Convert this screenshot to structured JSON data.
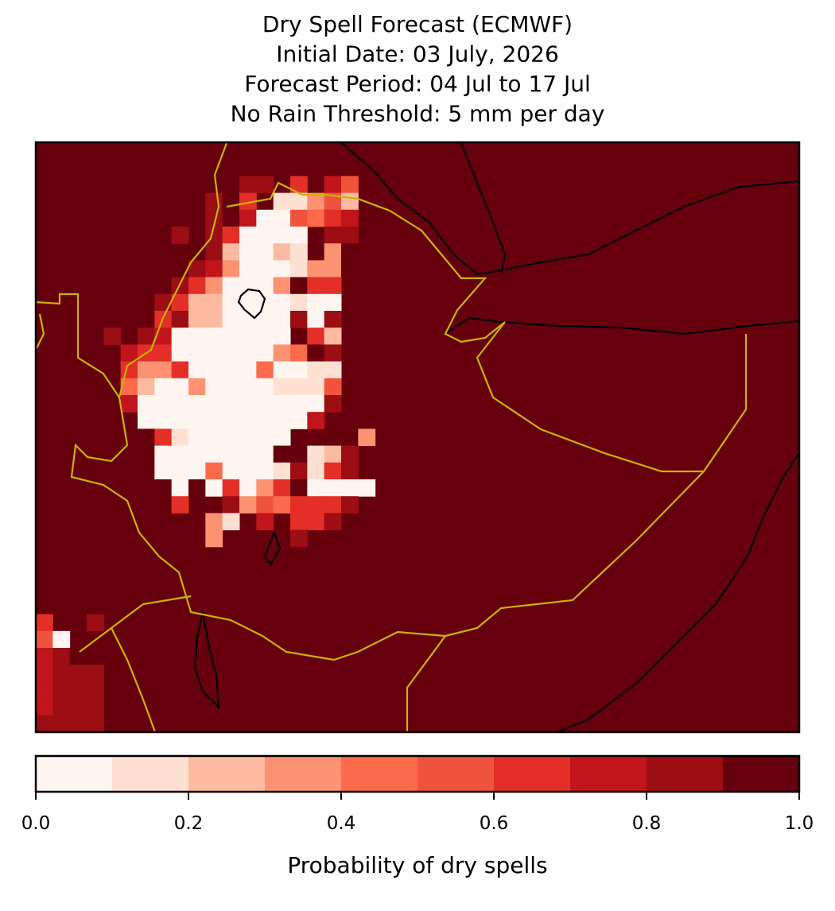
{
  "chart_data": {
    "type": "heatmap",
    "title": [
      "Dry Spell Forecast (ECMWF)",
      "Initial Date: 03 July, 2026",
      "Forecast Period: 04 Jul to 17 Jul",
      "No Rain Threshold: 5 mm per day"
    ],
    "grid_rows": 35,
    "grid_cols": 45,
    "fill_value": 1,
    "cells": [
      [
        1,
        16,
        0.9
      ],
      [
        2,
        12,
        0.8
      ],
      [
        2,
        13,
        0.8
      ],
      [
        2,
        15,
        0.6
      ],
      [
        2,
        17,
        0.7
      ],
      [
        2,
        18,
        0.5
      ],
      [
        3,
        10,
        0.8
      ],
      [
        3,
        11,
        0.9
      ],
      [
        3,
        12,
        0.6
      ],
      [
        3,
        14,
        0.1
      ],
      [
        3,
        15,
        0.1
      ],
      [
        3,
        16,
        0.3
      ],
      [
        3,
        17,
        0.5
      ],
      [
        3,
        18,
        0.2
      ],
      [
        4,
        10,
        0.8
      ],
      [
        4,
        11,
        0.9
      ],
      [
        4,
        12,
        0.7
      ],
      [
        4,
        13,
        0
      ],
      [
        4,
        14,
        0
      ],
      [
        4,
        15,
        0.5
      ],
      [
        4,
        16,
        0.4
      ],
      [
        4,
        17,
        0.6
      ],
      [
        4,
        18,
        0.7
      ],
      [
        5,
        8,
        0.8
      ],
      [
        5,
        10,
        0.8
      ],
      [
        5,
        11,
        0.6
      ],
      [
        5,
        12,
        0
      ],
      [
        5,
        13,
        0
      ],
      [
        5,
        14,
        0
      ],
      [
        5,
        15,
        0
      ],
      [
        5,
        17,
        0.8
      ],
      [
        5,
        18,
        0.8
      ],
      [
        6,
        9,
        0.9
      ],
      [
        6,
        10,
        0.8
      ],
      [
        6,
        11,
        0.2
      ],
      [
        6,
        12,
        0
      ],
      [
        6,
        13,
        0
      ],
      [
        6,
        14,
        0.2
      ],
      [
        6,
        15,
        0.1
      ],
      [
        6,
        17,
        0.3
      ],
      [
        6,
        18,
        0.9
      ],
      [
        7,
        9,
        0.8
      ],
      [
        7,
        10,
        0.7
      ],
      [
        7,
        11,
        0.3
      ],
      [
        7,
        12,
        0
      ],
      [
        7,
        13,
        0
      ],
      [
        7,
        14,
        0
      ],
      [
        7,
        15,
        0.1
      ],
      [
        7,
        16,
        0.3
      ],
      [
        7,
        17,
        0.3
      ],
      [
        7,
        18,
        0.9
      ],
      [
        8,
        7,
        0.9
      ],
      [
        8,
        8,
        0.8
      ],
      [
        8,
        9,
        0.6
      ],
      [
        8,
        10,
        0.3
      ],
      [
        8,
        11,
        0
      ],
      [
        8,
        12,
        0
      ],
      [
        8,
        13,
        0
      ],
      [
        8,
        14,
        0.3
      ],
      [
        8,
        15,
        0.9
      ],
      [
        8,
        16,
        0.6
      ],
      [
        8,
        17,
        0.6
      ],
      [
        9,
        7,
        0.8
      ],
      [
        9,
        8,
        0.6
      ],
      [
        9,
        9,
        0.2
      ],
      [
        9,
        10,
        0.2
      ],
      [
        9,
        11,
        0
      ],
      [
        9,
        12,
        0
      ],
      [
        9,
        13,
        0
      ],
      [
        9,
        14,
        0
      ],
      [
        9,
        15,
        0.1
      ],
      [
        9,
        16,
        0
      ],
      [
        9,
        17,
        0
      ],
      [
        10,
        7,
        0.6
      ],
      [
        10,
        8,
        0.8
      ],
      [
        10,
        9,
        0.2
      ],
      [
        10,
        10,
        0.2
      ],
      [
        10,
        11,
        0
      ],
      [
        10,
        12,
        0
      ],
      [
        10,
        13,
        0
      ],
      [
        10,
        14,
        0
      ],
      [
        10,
        15,
        0.8
      ],
      [
        10,
        16,
        0
      ],
      [
        10,
        17,
        0.8
      ],
      [
        11,
        4,
        0.8
      ],
      [
        11,
        6,
        0.8
      ],
      [
        11,
        7,
        0.7
      ],
      [
        11,
        8,
        0
      ],
      [
        11,
        9,
        0
      ],
      [
        11,
        10,
        0
      ],
      [
        11,
        11,
        0
      ],
      [
        11,
        12,
        0
      ],
      [
        11,
        13,
        0
      ],
      [
        11,
        14,
        0
      ],
      [
        11,
        16,
        0.6
      ],
      [
        11,
        17,
        0.2
      ],
      [
        12,
        5,
        0.7
      ],
      [
        12,
        6,
        0.6
      ],
      [
        12,
        7,
        0.6
      ],
      [
        12,
        8,
        0
      ],
      [
        12,
        9,
        0
      ],
      [
        12,
        10,
        0
      ],
      [
        12,
        11,
        0
      ],
      [
        12,
        12,
        0
      ],
      [
        12,
        13,
        0
      ],
      [
        12,
        14,
        0.3
      ],
      [
        12,
        15,
        0.4
      ],
      [
        12,
        16,
        0.9
      ],
      [
        12,
        17,
        0.8
      ],
      [
        13,
        5,
        0.6
      ],
      [
        13,
        6,
        0.3
      ],
      [
        13,
        7,
        0.3
      ],
      [
        13,
        8,
        0.6
      ],
      [
        13,
        9,
        0
      ],
      [
        13,
        10,
        0
      ],
      [
        13,
        11,
        0
      ],
      [
        13,
        12,
        0
      ],
      [
        13,
        13,
        0.4
      ],
      [
        13,
        14,
        0
      ],
      [
        13,
        15,
        0
      ],
      [
        13,
        16,
        0.1
      ],
      [
        13,
        17,
        0.1
      ],
      [
        14,
        5,
        0.4
      ],
      [
        14,
        6,
        0.2
      ],
      [
        14,
        7,
        0
      ],
      [
        14,
        8,
        0
      ],
      [
        14,
        9,
        0.3
      ],
      [
        14,
        10,
        0
      ],
      [
        14,
        11,
        0
      ],
      [
        14,
        12,
        0
      ],
      [
        14,
        13,
        0
      ],
      [
        14,
        14,
        0.1
      ],
      [
        14,
        15,
        0.1
      ],
      [
        14,
        16,
        0.1
      ],
      [
        14,
        17,
        0.5
      ],
      [
        15,
        5,
        0.7
      ],
      [
        15,
        6,
        0
      ],
      [
        15,
        7,
        0
      ],
      [
        15,
        8,
        0
      ],
      [
        15,
        9,
        0
      ],
      [
        15,
        10,
        0
      ],
      [
        15,
        11,
        0
      ],
      [
        15,
        12,
        0
      ],
      [
        15,
        13,
        0
      ],
      [
        15,
        14,
        0
      ],
      [
        15,
        15,
        0
      ],
      [
        15,
        16,
        0
      ],
      [
        15,
        17,
        0.8
      ],
      [
        16,
        6,
        0
      ],
      [
        16,
        7,
        0
      ],
      [
        16,
        8,
        0
      ],
      [
        16,
        9,
        0
      ],
      [
        16,
        10,
        0
      ],
      [
        16,
        11,
        0
      ],
      [
        16,
        12,
        0
      ],
      [
        16,
        13,
        0
      ],
      [
        16,
        14,
        0
      ],
      [
        16,
        15,
        0
      ],
      [
        16,
        16,
        0.7
      ],
      [
        17,
        6,
        0.9
      ],
      [
        17,
        7,
        0.6
      ],
      [
        17,
        8,
        0.1
      ],
      [
        17,
        9,
        0
      ],
      [
        17,
        10,
        0
      ],
      [
        17,
        11,
        0
      ],
      [
        17,
        12,
        0
      ],
      [
        17,
        13,
        0
      ],
      [
        17,
        14,
        0
      ],
      [
        17,
        19,
        0.3
      ],
      [
        18,
        6,
        0.9
      ],
      [
        18,
        7,
        0
      ],
      [
        18,
        8,
        0
      ],
      [
        18,
        9,
        0
      ],
      [
        18,
        10,
        0
      ],
      [
        18,
        11,
        0
      ],
      [
        18,
        12,
        0
      ],
      [
        18,
        13,
        0
      ],
      [
        18,
        14,
        0.9
      ],
      [
        18,
        15,
        0.9
      ],
      [
        18,
        16,
        0.1
      ],
      [
        18,
        17,
        0.2
      ],
      [
        18,
        18,
        0.8
      ],
      [
        19,
        7,
        0
      ],
      [
        19,
        8,
        0
      ],
      [
        19,
        9,
        0
      ],
      [
        19,
        10,
        0.4
      ],
      [
        19,
        11,
        0
      ],
      [
        19,
        12,
        0
      ],
      [
        19,
        13,
        0
      ],
      [
        19,
        14,
        0.1
      ],
      [
        19,
        15,
        0.8
      ],
      [
        19,
        16,
        0.1
      ],
      [
        19,
        17,
        0.6
      ],
      [
        19,
        18,
        0.8
      ],
      [
        20,
        7,
        0.9
      ],
      [
        20,
        8,
        0
      ],
      [
        20,
        9,
        0.9
      ],
      [
        20,
        10,
        0
      ],
      [
        20,
        11,
        0.6
      ],
      [
        20,
        12,
        0
      ],
      [
        20,
        13,
        0.3
      ],
      [
        20,
        14,
        0.6
      ],
      [
        20,
        15,
        0.9
      ],
      [
        20,
        16,
        0
      ],
      [
        20,
        17,
        0
      ],
      [
        20,
        18,
        0
      ],
      [
        20,
        19,
        0
      ],
      [
        21,
        8,
        0.6
      ],
      [
        21,
        11,
        0.8
      ],
      [
        21,
        12,
        0.3
      ],
      [
        21,
        13,
        0.5
      ],
      [
        21,
        14,
        0.4
      ],
      [
        21,
        15,
        0.6
      ],
      [
        21,
        16,
        0.6
      ],
      [
        21,
        17,
        0.6
      ],
      [
        21,
        18,
        0.8
      ],
      [
        22,
        10,
        0.3
      ],
      [
        22,
        11,
        0.1
      ],
      [
        22,
        13,
        0.7
      ],
      [
        22,
        15,
        0.6
      ],
      [
        22,
        16,
        0.6
      ],
      [
        22,
        17,
        0.8
      ],
      [
        23,
        10,
        0.3
      ],
      [
        23,
        15,
        0.8
      ],
      [
        28,
        0,
        0.6
      ],
      [
        28,
        3,
        0.8
      ],
      [
        29,
        0,
        0.5
      ],
      [
        29,
        1,
        0
      ],
      [
        30,
        0,
        0.7
      ],
      [
        30,
        1,
        0.8
      ],
      [
        30,
        2,
        0.9
      ],
      [
        31,
        0,
        0.7
      ],
      [
        31,
        1,
        0.8
      ],
      [
        31,
        2,
        0.8
      ],
      [
        31,
        3,
        0.8
      ],
      [
        32,
        0,
        0.7
      ],
      [
        32,
        1,
        0.8
      ],
      [
        32,
        2,
        0.8
      ],
      [
        32,
        3,
        0.8
      ],
      [
        33,
        0,
        0.7
      ],
      [
        33,
        1,
        0.8
      ],
      [
        33,
        2,
        0.8
      ],
      [
        33,
        3,
        0.8
      ],
      [
        34,
        0,
        0.8
      ],
      [
        34,
        1,
        0.8
      ],
      [
        34,
        2,
        0.8
      ],
      [
        34,
        3,
        0.8
      ]
    ],
    "colorbar": {
      "levels": [
        0,
        0.1,
        0.2,
        0.3,
        0.4,
        0.5,
        0.6,
        0.7,
        0.8,
        0.9,
        1
      ],
      "colors": [
        "#fff5f0",
        "#fee0d2",
        "#fcbba1",
        "#fc9272",
        "#fb6a4a",
        "#f0533b",
        "#e32f27",
        "#c1151b",
        "#9c0d14",
        "#67000d"
      ],
      "ticks": [
        {
          "value": 0,
          "label": "0.0"
        },
        0.2,
        0.4,
        0.6,
        0.8,
        {
          "value": 1,
          "label": "1.0"
        }
      ],
      "label": "Probability of dry spells"
    }
  }
}
